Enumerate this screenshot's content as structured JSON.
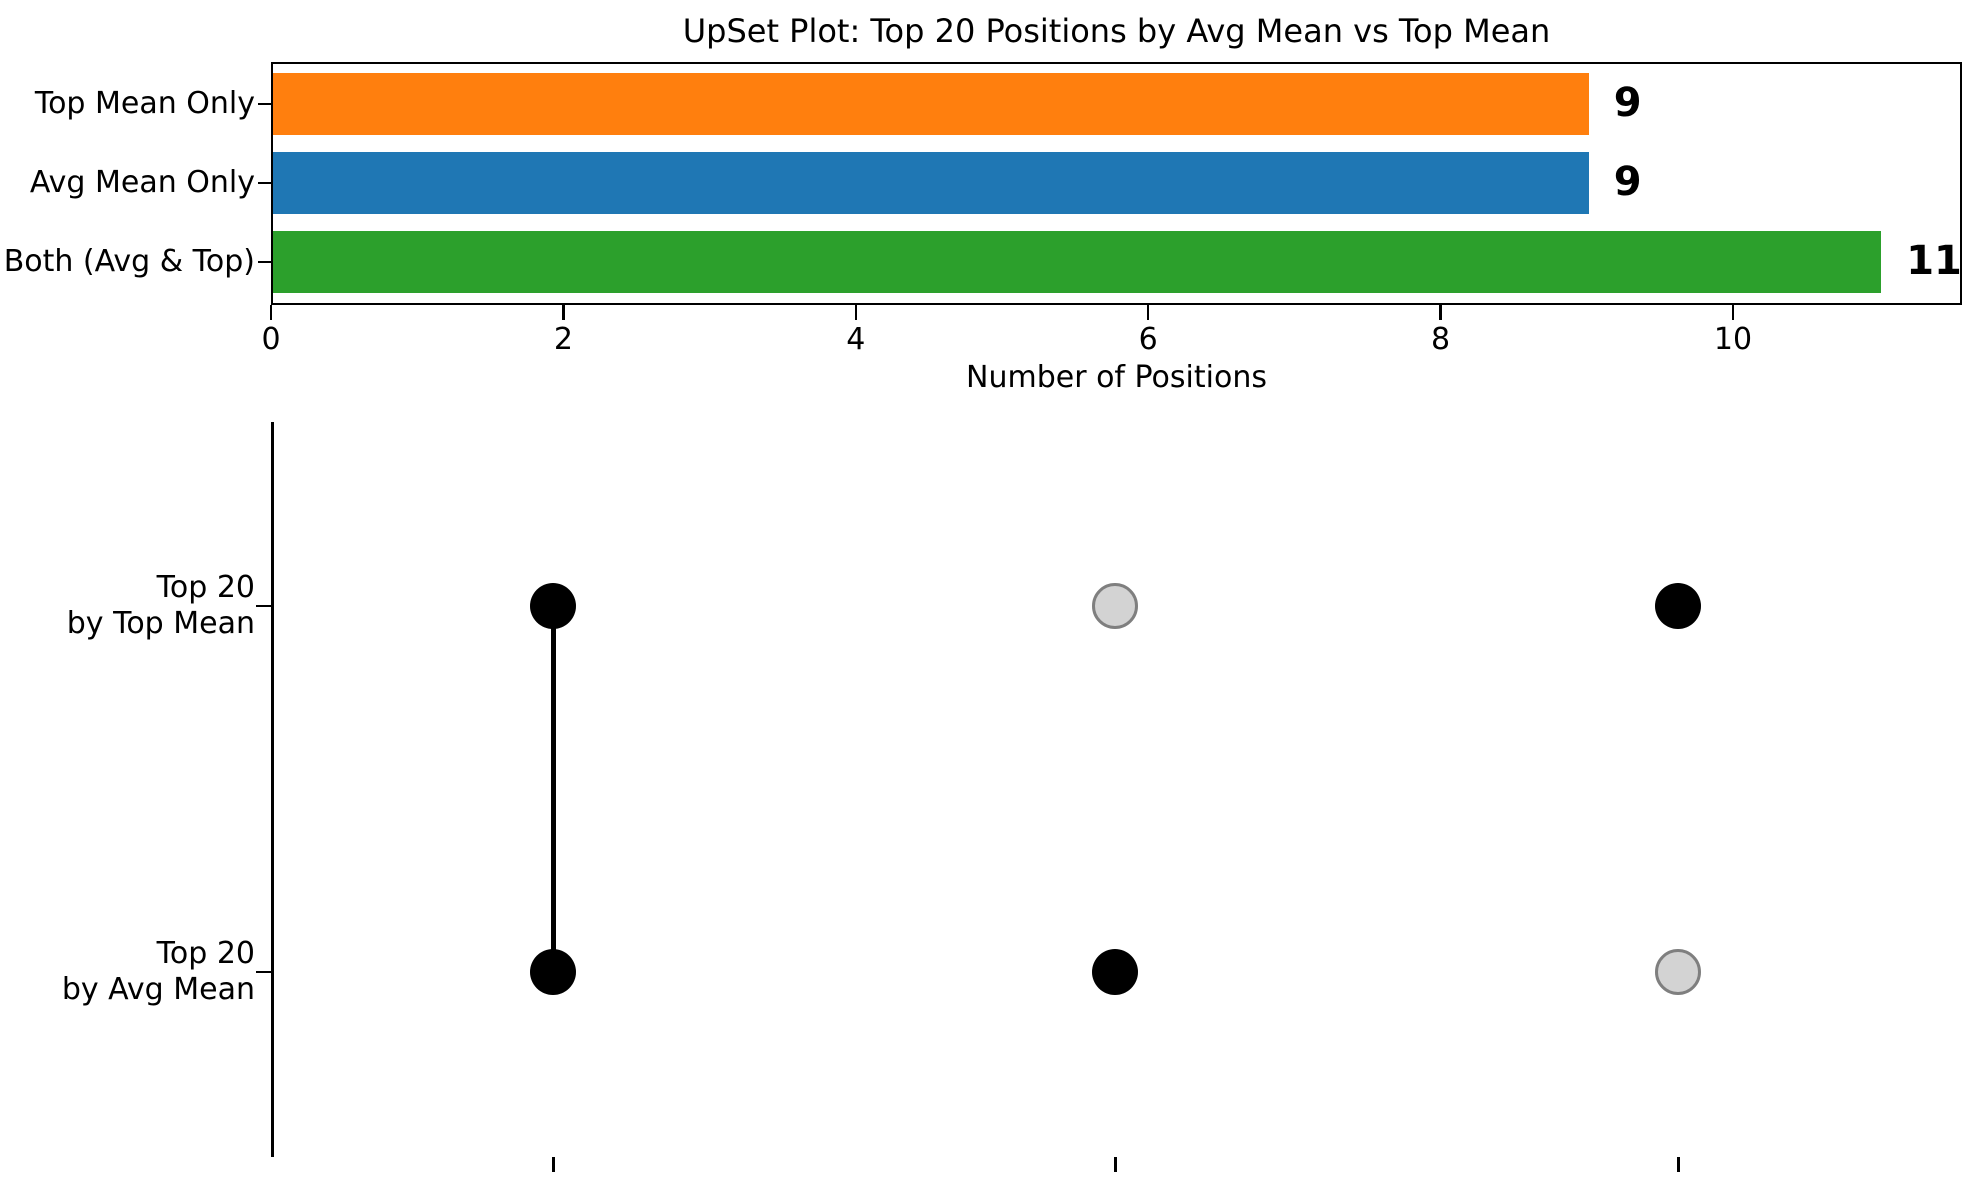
{
  "chart_data": {
    "type": "bar",
    "orientation": "horizontal",
    "title": "UpSet Plot: Top 20 Positions by Avg Mean vs Top Mean",
    "xlabel": "Number of Positions",
    "ylabel": "",
    "categories": [
      "Top Mean Only",
      "Avg Mean Only",
      "Both (Avg & Top)"
    ],
    "values": [
      9,
      9,
      11
    ],
    "value_labels": [
      "9",
      "9",
      "11"
    ],
    "bar_colors": [
      "#ff7f0e",
      "#1f77b4",
      "#2ca02c"
    ],
    "xticks": [
      0,
      2,
      4,
      6,
      8,
      10
    ],
    "xtick_labels": [
      "0",
      "2",
      "4",
      "6",
      "8",
      "10"
    ],
    "xlim": [
      0,
      11.6
    ],
    "grid": false,
    "legend_position": "none",
    "value_label_style": "bold"
  },
  "matrix": {
    "row_labels": [
      {
        "line1": "Top 20",
        "line2": "by Top Mean"
      },
      {
        "line1": "Top 20",
        "line2": "by Avg Mean"
      }
    ],
    "columns": [
      {
        "set": "Both (Avg & Top)",
        "dots": [
          "filled",
          "filled"
        ],
        "connected": true
      },
      {
        "set": "Avg Mean Only",
        "dots": [
          "empty",
          "filled"
        ],
        "connected": false
      },
      {
        "set": "Top Mean Only",
        "dots": [
          "filled",
          "empty"
        ],
        "connected": false
      }
    ],
    "colors": {
      "dot_filled": "#000000",
      "dot_empty_fill": "#d3d3d3",
      "dot_empty_border": "#7f7f7f",
      "connector": "#000000"
    }
  },
  "colors": {
    "background": "#ffffff",
    "text": "#000000",
    "spine": "#000000"
  }
}
